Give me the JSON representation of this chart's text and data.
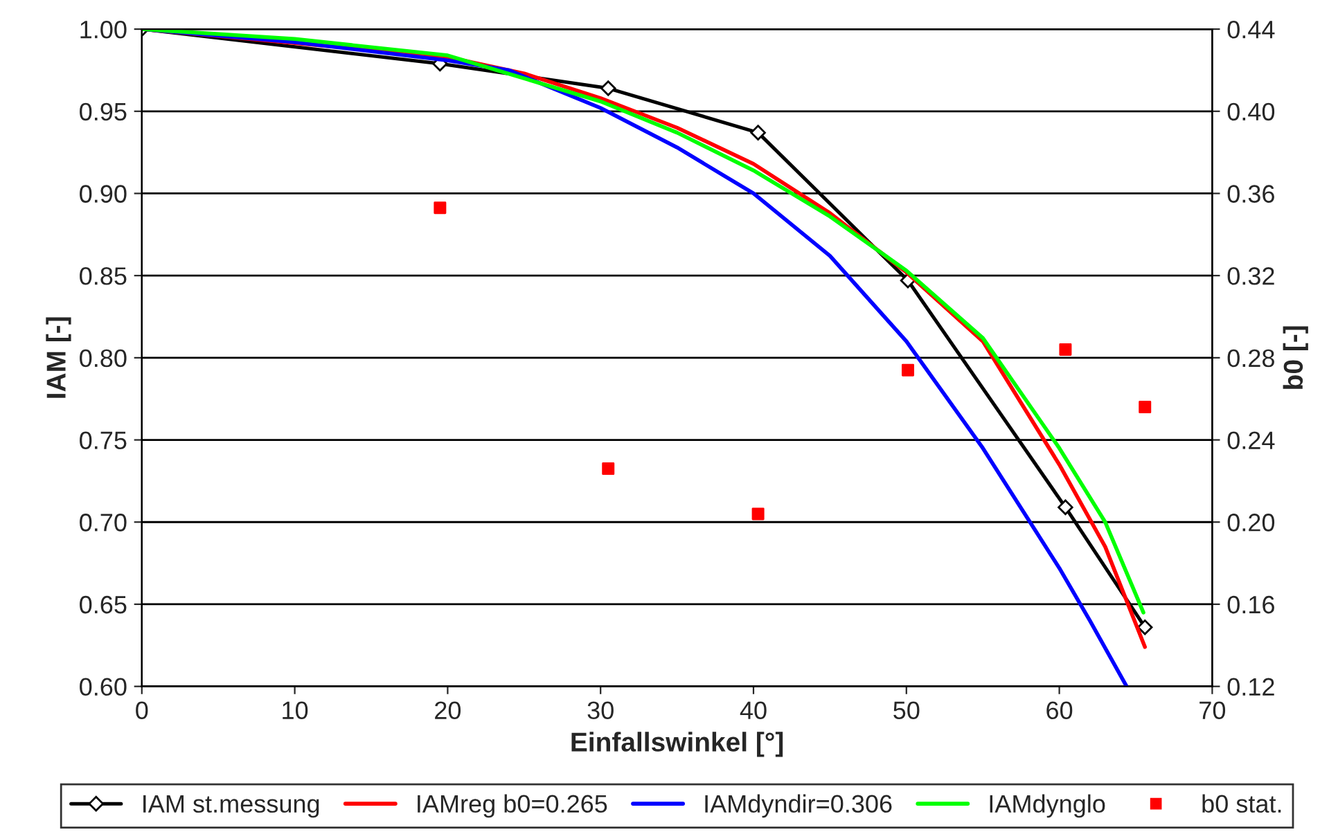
{
  "chart_data": {
    "type": "line",
    "xlabel": "Einfallswinkel [°]",
    "ylabel": "IAM [-]",
    "y2label": "b0 [-]",
    "xlim": [
      0,
      70
    ],
    "xticks": [
      0,
      10,
      20,
      30,
      40,
      50,
      60,
      70
    ],
    "ylim": [
      0.6,
      1.0
    ],
    "yticks": [
      {
        "value": 0.6,
        "label": "0.60"
      },
      {
        "value": 0.65,
        "label": "0.65"
      },
      {
        "value": 0.7,
        "label": "0.70"
      },
      {
        "value": 0.75,
        "label": "0.75"
      },
      {
        "value": 0.8,
        "label": "0.80"
      },
      {
        "value": 0.85,
        "label": "0.85"
      },
      {
        "value": 0.9,
        "label": "0.90"
      },
      {
        "value": 0.95,
        "label": "0.95"
      },
      {
        "value": 1.0,
        "label": "1.00"
      }
    ],
    "y2lim": [
      0.12,
      0.44
    ],
    "y2ticks": [
      {
        "value": 0.12,
        "label": "0.12"
      },
      {
        "value": 0.16,
        "label": "0.16"
      },
      {
        "value": 0.2,
        "label": "0.20"
      },
      {
        "value": 0.24,
        "label": "0.24"
      },
      {
        "value": 0.28,
        "label": "0.28"
      },
      {
        "value": 0.32,
        "label": "0.32"
      },
      {
        "value": 0.36,
        "label": "0.36"
      },
      {
        "value": 0.4,
        "label": "0.40"
      },
      {
        "value": 0.44,
        "label": "0.44"
      }
    ],
    "grid": "y",
    "legend": "bottom",
    "series": [
      {
        "name": "IAM st.messung",
        "color": "#000000",
        "marker": "diamond",
        "x": [
          0,
          19.5,
          30.5,
          40.3,
          50.1,
          60.4,
          65.6
        ],
        "values": [
          1.0,
          0.979,
          0.964,
          0.937,
          0.847,
          0.709,
          0.636
        ]
      },
      {
        "name": "IAMreg b0=0.265",
        "color": "#ff0000",
        "x": [
          0,
          20,
          25,
          30,
          35,
          40,
          45,
          50,
          55,
          60,
          63,
          65.6
        ],
        "values": [
          1.0,
          0.983,
          0.973,
          0.958,
          0.94,
          0.918,
          0.888,
          0.852,
          0.81,
          0.735,
          0.685,
          0.624
        ]
      },
      {
        "name": "IAMdyndir=0.306",
        "color": "#0000ff",
        "x": [
          0,
          10,
          20,
          24,
          30,
          35,
          40,
          45,
          50,
          55,
          60,
          62,
          64.4
        ],
        "values": [
          1.0,
          0.992,
          0.981,
          0.975,
          0.952,
          0.928,
          0.9,
          0.862,
          0.81,
          0.745,
          0.672,
          0.64,
          0.6
        ]
      },
      {
        "name": "IAMdynglo",
        "color": "#00ff00",
        "x": [
          0,
          10,
          20,
          30,
          35,
          40,
          45,
          50,
          55,
          60,
          63,
          65.5
        ],
        "values": [
          1.0,
          0.994,
          0.984,
          0.956,
          0.937,
          0.914,
          0.886,
          0.853,
          0.812,
          0.745,
          0.7,
          0.645
        ]
      },
      {
        "name": "b0 stat.",
        "type": "scatter",
        "axis": "y2",
        "color": "#ff0000",
        "marker": "square",
        "x": [
          19.5,
          30.5,
          40.3,
          50.1,
          60.4,
          65.6
        ],
        "values": [
          0.353,
          0.226,
          0.204,
          0.274,
          0.284,
          0.256
        ]
      }
    ]
  }
}
